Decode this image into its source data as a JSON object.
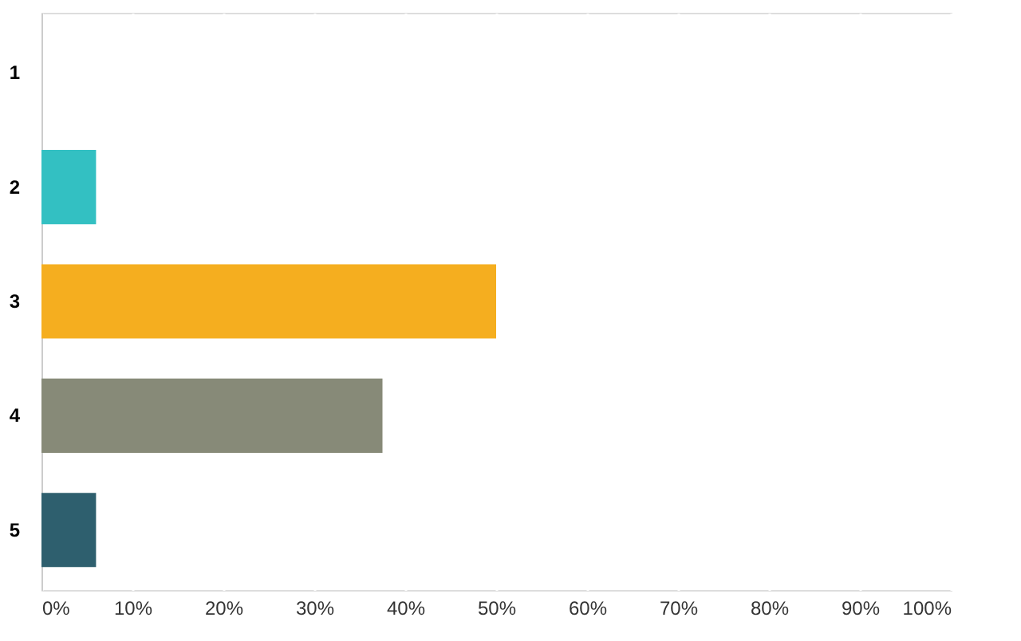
{
  "chart_data": {
    "type": "bar",
    "orientation": "horizontal",
    "categories": [
      "1",
      "2",
      "3",
      "4",
      "5"
    ],
    "values": [
      0,
      6,
      50,
      37.5,
      6
    ],
    "colors": [
      "#1f77b4",
      "#33c0c2",
      "#f5ae1f",
      "#878a78",
      "#2e5f6e"
    ],
    "xlim": [
      0,
      100
    ],
    "xticks": [
      {
        "value": 0,
        "label": "0%"
      },
      {
        "value": 10,
        "label": "10%"
      },
      {
        "value": 20,
        "label": "20%"
      },
      {
        "value": 30,
        "label": "30%"
      },
      {
        "value": 40,
        "label": "40%"
      },
      {
        "value": 50,
        "label": "50%"
      },
      {
        "value": 60,
        "label": "60%"
      },
      {
        "value": 70,
        "label": "70%"
      },
      {
        "value": 80,
        "label": "80%"
      },
      {
        "value": 90,
        "label": "90%"
      },
      {
        "value": 100,
        "label": "100%"
      }
    ],
    "grid": "x",
    "legend": false
  }
}
